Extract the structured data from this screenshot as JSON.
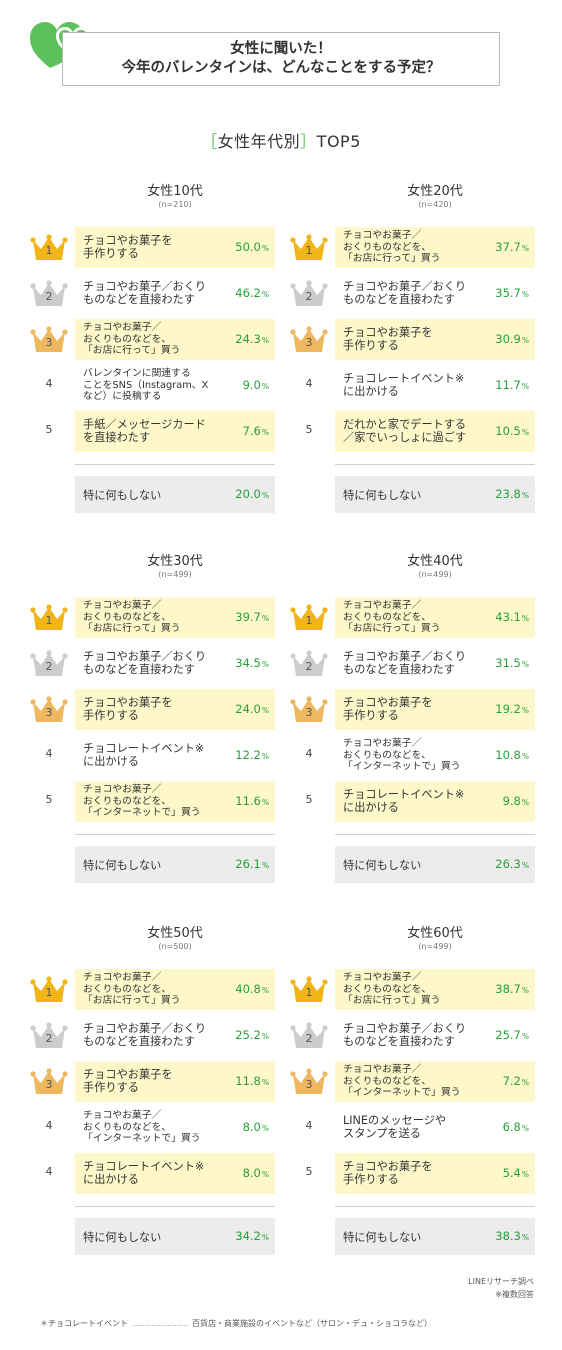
{
  "title": {
    "line1": "女性に聞いた！",
    "line2": "今年のバレンタインは、どんなことをする予定？"
  },
  "subtitle": {
    "bracket_open": "［",
    "text": "女性年代別",
    "bracket_close": "］",
    "suffix": "TOP5"
  },
  "colors": {
    "brand_green": "#5cc15a",
    "percent_green": "#25a13a",
    "highlight_yellow": "#fdf7c9",
    "none_gray": "#ececec",
    "gold": "#f2b517",
    "silver": "#cccccc",
    "bronze": "#eeb860"
  },
  "icons": {
    "logo": "green-heart-logo-icon",
    "rank_1": "gold-crown-icon",
    "rank_2": "silver-crown-icon",
    "rank_3": "bronze-crown-icon"
  },
  "chart_data": [
    {
      "type": "bar",
      "title": "女性10代",
      "n": "(n=210)",
      "categories": [
        "チョコやお菓子を\n手作りする",
        "チョコやお菓子／おくり\nものなどを直接わたす",
        "チョコやお菓子／\nおくりものなどを、\n「お店に行って」買う",
        "バレンタインに関連する\nことをSNS（Instagram、X\nなど）に投稿する",
        "手紙／メッセージカード\nを直接わたす"
      ],
      "ranks": [
        "1",
        "2",
        "3",
        "4",
        "5"
      ],
      "values": [
        50.0,
        46.2,
        24.3,
        9.0,
        7.6
      ],
      "labels": [
        "50.0",
        "46.2",
        "24.3",
        "9.0",
        "7.6"
      ],
      "none_label": "特に何もしない",
      "none_value": 20.0,
      "none_text": "20.0"
    },
    {
      "type": "bar",
      "title": "女性20代",
      "n": "(n=420)",
      "categories": [
        "チョコやお菓子／\nおくりものなどを、\n「お店に行って」買う",
        "チョコやお菓子／おくり\nものなどを直接わたす",
        "チョコやお菓子を\n手作りする",
        "チョコレートイベント※\nに出かける",
        "だれかと家でデートする\n／家でいっしょに過ごす"
      ],
      "ranks": [
        "1",
        "2",
        "3",
        "4",
        "5"
      ],
      "values": [
        37.7,
        35.7,
        30.9,
        11.7,
        10.5
      ],
      "labels": [
        "37.7",
        "35.7",
        "30.9",
        "11.7",
        "10.5"
      ],
      "none_label": "特に何もしない",
      "none_value": 23.8,
      "none_text": "23.8"
    },
    {
      "type": "bar",
      "title": "女性30代",
      "n": "(n=499)",
      "categories": [
        "チョコやお菓子／\nおくりものなどを、\n「お店に行って」買う",
        "チョコやお菓子／おくり\nものなどを直接わたす",
        "チョコやお菓子を\n手作りする",
        "チョコレートイベント※\nに出かける",
        "チョコやお菓子／\nおくりものなどを、\n「インターネットで」買う"
      ],
      "ranks": [
        "1",
        "2",
        "3",
        "4",
        "5"
      ],
      "values": [
        39.7,
        34.5,
        24.0,
        12.2,
        11.6
      ],
      "labels": [
        "39.7",
        "34.5",
        "24.0",
        "12.2",
        "11.6"
      ],
      "none_label": "特に何もしない",
      "none_value": 26.1,
      "none_text": "26.1"
    },
    {
      "type": "bar",
      "title": "女性40代",
      "n": "(n=499)",
      "categories": [
        "チョコやお菓子／\nおくりものなどを、\n「お店に行って」買う",
        "チョコやお菓子／おくり\nものなどを直接わたす",
        "チョコやお菓子を\n手作りする",
        "チョコやお菓子／\nおくりものなどを、\n「インターネットで」買う",
        "チョコレートイベント※\nに出かける"
      ],
      "ranks": [
        "1",
        "2",
        "3",
        "4",
        "5"
      ],
      "values": [
        43.1,
        31.5,
        19.2,
        10.8,
        9.8
      ],
      "labels": [
        "43.1",
        "31.5",
        "19.2",
        "10.8",
        "9.8"
      ],
      "none_label": "特に何もしない",
      "none_value": 26.3,
      "none_text": "26.3"
    },
    {
      "type": "bar",
      "title": "女性50代",
      "n": "(n=500)",
      "categories": [
        "チョコやお菓子／\nおくりものなどを、\n「お店に行って」買う",
        "チョコやお菓子／おくり\nものなどを直接わたす",
        "チョコやお菓子を\n手作りする",
        "チョコやお菓子／\nおくりものなどを、\n「インターネットで」買う",
        "チョコレートイベント※\nに出かける"
      ],
      "ranks": [
        "1",
        "2",
        "3",
        "4",
        "4"
      ],
      "values": [
        40.8,
        25.2,
        11.8,
        8.0,
        8.0
      ],
      "labels": [
        "40.8",
        "25.2",
        "11.8",
        "8.0",
        "8.0"
      ],
      "none_label": "特に何もしない",
      "none_value": 34.2,
      "none_text": "34.2"
    },
    {
      "type": "bar",
      "title": "女性60代",
      "n": "(n=499)",
      "categories": [
        "チョコやお菓子／\nおくりものなどを、\n「お店に行って」買う",
        "チョコやお菓子／おくり\nものなどを直接わたす",
        "チョコやお菓子／\nおくりものなどを、\n「インターネットで」買う",
        "LINEのメッセージや\nスタンプを送る",
        "チョコやお菓子を\n手作りする"
      ],
      "ranks": [
        "1",
        "2",
        "3",
        "4",
        "5"
      ],
      "values": [
        38.7,
        25.7,
        7.2,
        6.8,
        5.4
      ],
      "labels": [
        "38.7",
        "25.7",
        "7.2",
        "6.8",
        "5.4"
      ],
      "none_label": "特に何もしない",
      "none_value": 38.3,
      "none_text": "38.3"
    }
  ],
  "percent_unit": "%",
  "source": {
    "line1": "LINEリサーチ調べ",
    "line2": "※複数回答"
  },
  "footnote": {
    "term": "＊チョコレートイベント",
    "dots": "……………………",
    "definition": "百貨店・商業施設のイベントなど（サロン・デュ・ショコラなど）"
  }
}
